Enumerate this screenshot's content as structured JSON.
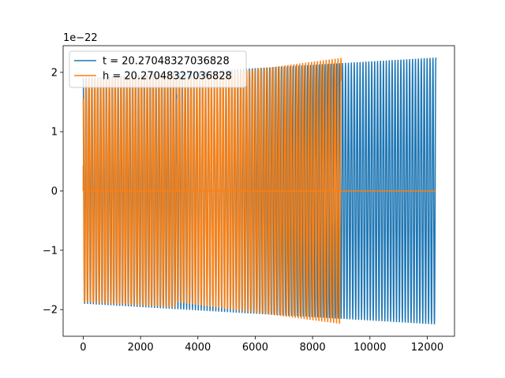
{
  "chart_data": {
    "type": "line",
    "title": "",
    "xlabel": "",
    "ylabel": "",
    "offset_text": "1e−22",
    "xlim": [
      -700,
      12950
    ],
    "ylim": [
      -2.45,
      2.45
    ],
    "xticks": [
      0,
      2000,
      4000,
      6000,
      8000,
      10000,
      12000
    ],
    "xtick_labels": [
      "0",
      "2000",
      "4000",
      "6000",
      "8000",
      "10000",
      "12000"
    ],
    "yticks": [
      -2,
      -1,
      0,
      1,
      2
    ],
    "ytick_labels": [
      "−2",
      "−1",
      "0",
      "1",
      "2"
    ],
    "grid": false,
    "legend_position": "top-left",
    "series": [
      {
        "name": "t = 20.27048327036828",
        "color": "#1f77b4",
        "kind": "oscillation",
        "x_start": 0,
        "x_end": 12300,
        "amp_start": 1.9,
        "amp_end": 2.25,
        "cycles": 121
      },
      {
        "name": "h = 20.27048327036828",
        "color": "#ff7f0e",
        "kind": "oscillation-bursts",
        "x_start": 0,
        "x_end": 12300,
        "flat_value": 0,
        "bursts": [
          {
            "x_start": 0,
            "x_end": 3250,
            "amp_start": 1.88,
            "amp_end": 1.97,
            "cycles": 32,
            "phase_shift": 0.6
          },
          {
            "x_start": 3250,
            "x_end": 9000,
            "amp_start": 1.88,
            "amp_end": 2.25,
            "cycles": 56,
            "phase_shift": 0.6
          }
        ],
        "edge_values": [
          0.43,
          0.45
        ]
      }
    ]
  }
}
